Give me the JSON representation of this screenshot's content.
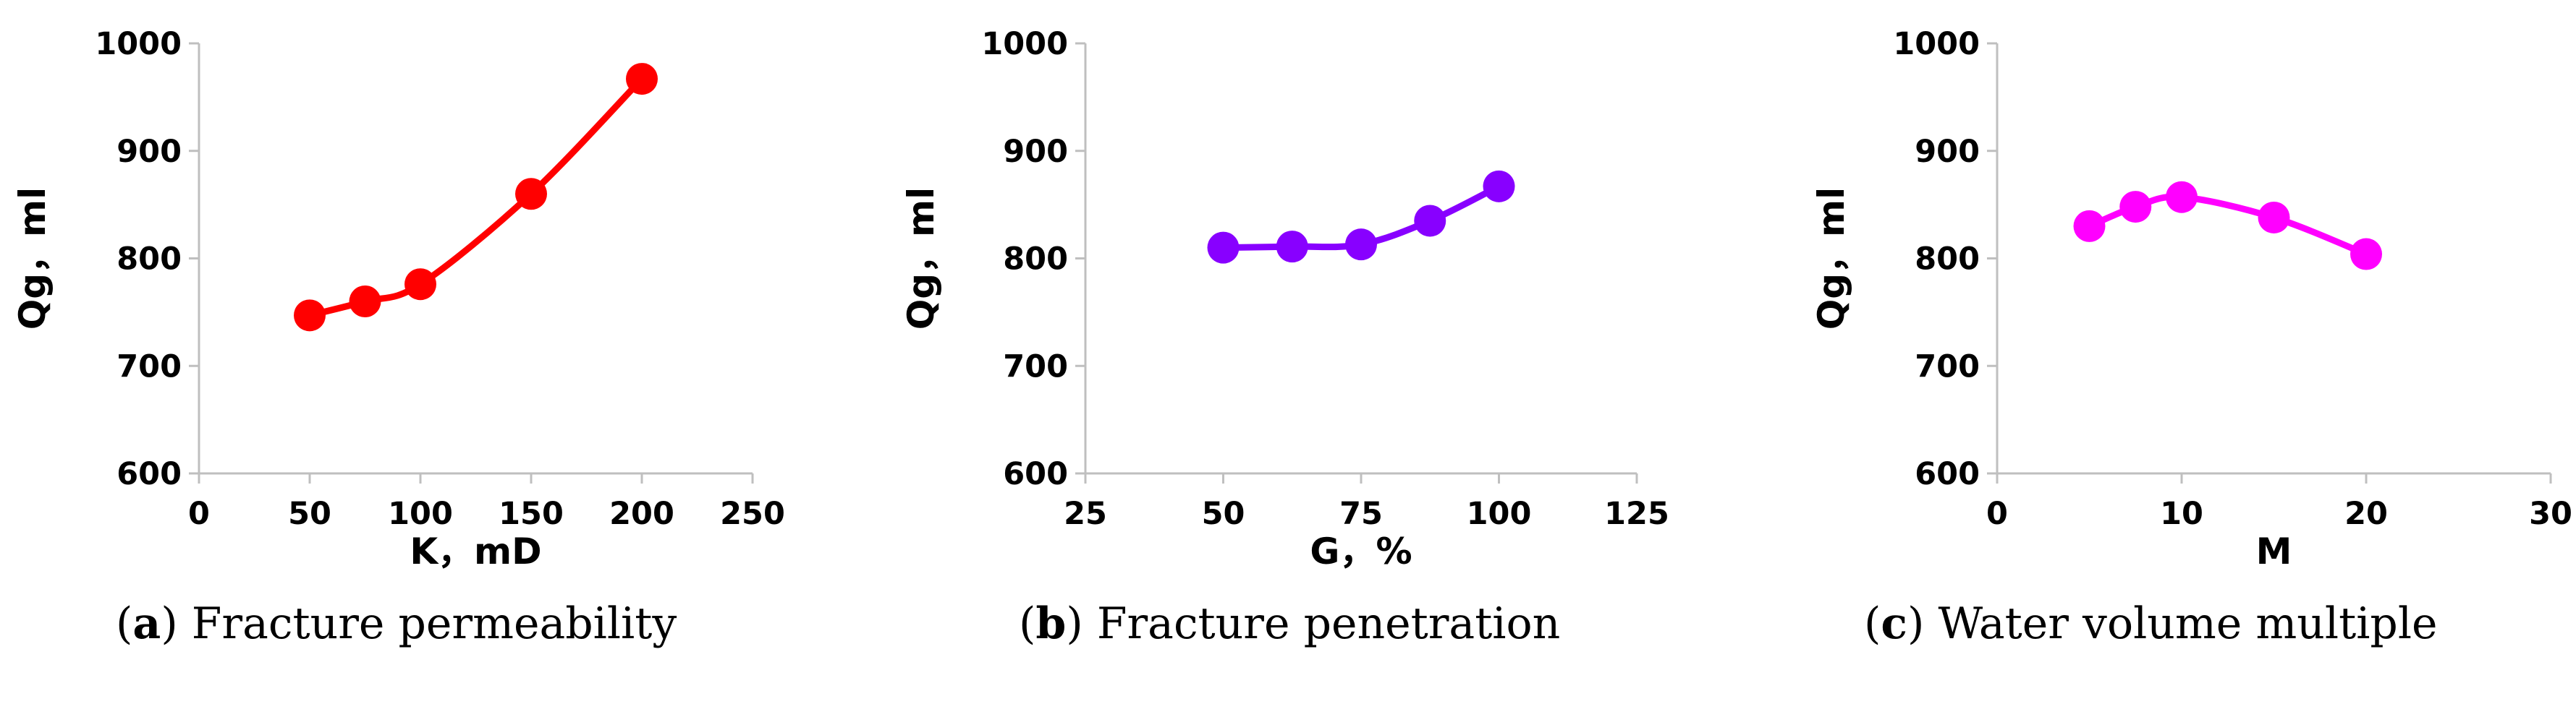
{
  "chart_data": [
    {
      "type": "line",
      "x": [
        50,
        75,
        100,
        150,
        200
      ],
      "y": [
        747,
        760,
        776,
        860,
        967
      ],
      "xlim": [
        0,
        250
      ],
      "ylim": [
        600,
        1000
      ],
      "xticks": [
        0,
        50,
        100,
        150,
        200,
        250
      ],
      "yticks": [
        600,
        700,
        800,
        900,
        1000
      ],
      "xlabel": "K，mD",
      "ylabel": "Qg，ml",
      "color": "#ff0000",
      "caption_letter": "a",
      "caption_text": "Fracture permeability"
    },
    {
      "type": "line",
      "x": [
        50,
        62.5,
        75,
        87.5,
        100
      ],
      "y": [
        810,
        811,
        813,
        835,
        867
      ],
      "xlim": [
        25,
        125
      ],
      "ylim": [
        600,
        1000
      ],
      "xticks": [
        25,
        50,
        75,
        100,
        125
      ],
      "yticks": [
        600,
        700,
        800,
        900,
        1000
      ],
      "xlabel": "G，%",
      "ylabel": "Qg，ml",
      "color": "#8800ff",
      "caption_letter": "b",
      "caption_text": "Fracture penetration"
    },
    {
      "type": "line",
      "x": [
        5,
        7.5,
        10,
        15,
        20
      ],
      "y": [
        830,
        848,
        857,
        838,
        804
      ],
      "xlim": [
        0,
        30
      ],
      "ylim": [
        600,
        1000
      ],
      "xticks": [
        0,
        10,
        20,
        30
      ],
      "yticks": [
        600,
        700,
        800,
        900,
        1000
      ],
      "xlabel": "M",
      "ylabel": "Qg，ml",
      "color": "#ff00ff",
      "caption_letter": "c",
      "caption_text": "Water volume multiple"
    }
  ]
}
